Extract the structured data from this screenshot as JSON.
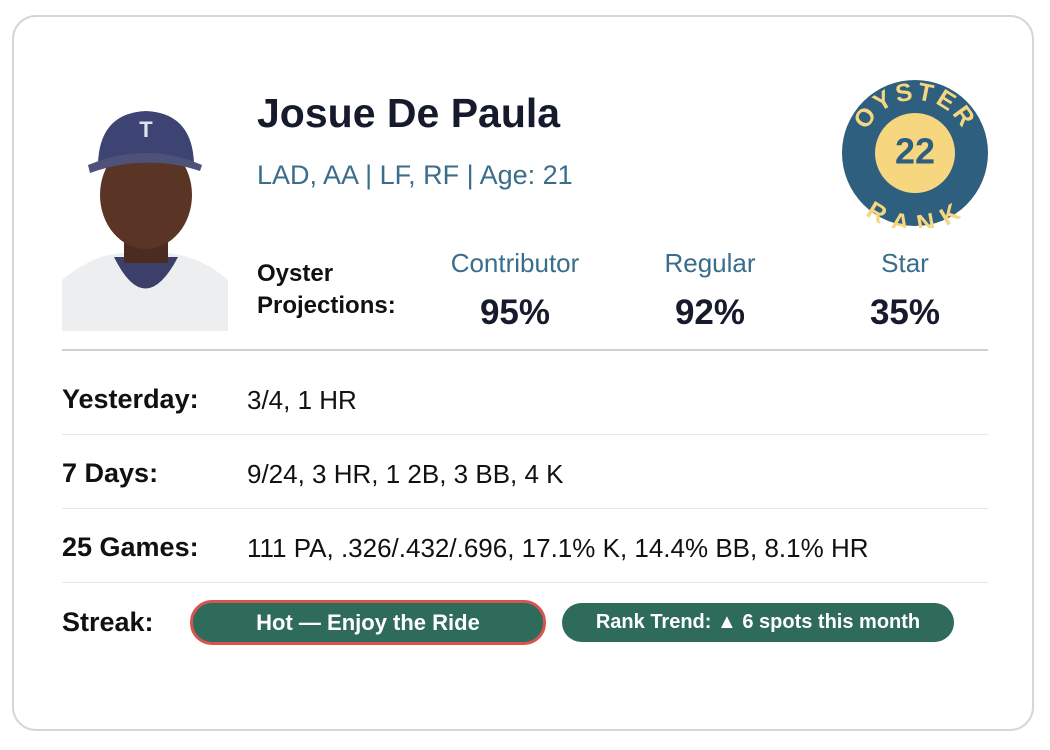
{
  "player": {
    "name": "Josue De Paula",
    "info": "LAD, AA | LF, RF | Age: 21"
  },
  "rank": {
    "top": "OYSTER",
    "value": "22",
    "bottom": "RANK"
  },
  "projections": {
    "label": "Oyster Projections:",
    "items": [
      {
        "name": "Contributor",
        "value": "95%"
      },
      {
        "name": "Regular",
        "value": "92%"
      },
      {
        "name": "Star",
        "value": "35%"
      }
    ]
  },
  "stats": [
    {
      "label": "Yesterday:",
      "value": "3/4, 1 HR"
    },
    {
      "label": "7 Days:",
      "value": "9/24, 3 HR, 1 2B, 3 BB, 4 K"
    },
    {
      "label": "25 Games:",
      "value": "111 PA, .326/.432/.696, 17.1% K, 14.4% BB, 8.1% HR"
    }
  ],
  "streak": {
    "label": "Streak:",
    "badge": "Hot — Enjoy the Ride",
    "trend": "Rank Trend: ▲ 6 spots this month"
  }
}
